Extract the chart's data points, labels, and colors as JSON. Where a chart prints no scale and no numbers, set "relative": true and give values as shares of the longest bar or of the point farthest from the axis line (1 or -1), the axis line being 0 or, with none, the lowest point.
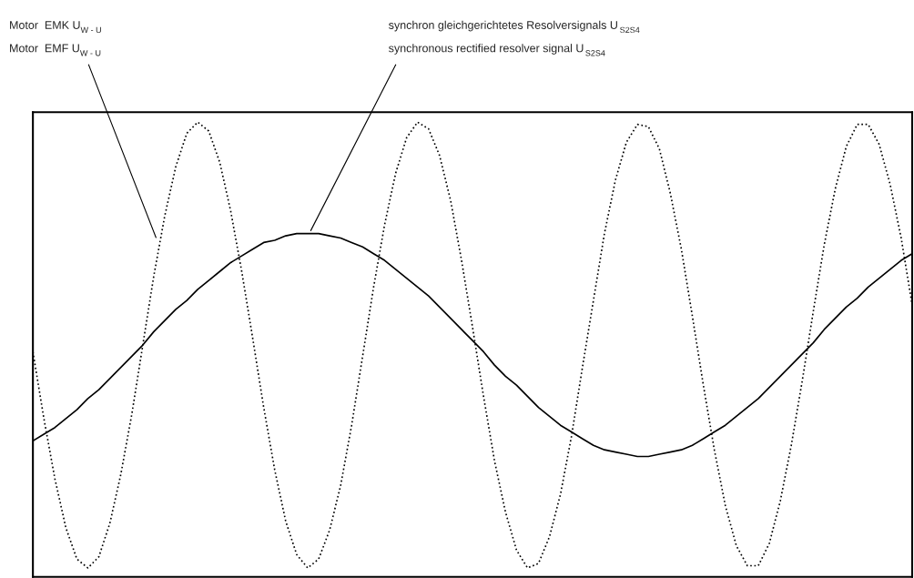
{
  "chart_data": {
    "type": "line",
    "relative": true,
    "categories": [
      null,
      null,
      null,
      null,
      null,
      null,
      null,
      null,
      null,
      null,
      null,
      null,
      null,
      null,
      null,
      null,
      null,
      null,
      null,
      null,
      null,
      null,
      null,
      null,
      null,
      null,
      null,
      null,
      null,
      null,
      null,
      null,
      null,
      null,
      null,
      null,
      null,
      null,
      null,
      null,
      null,
      null,
      null,
      null,
      null,
      null,
      null,
      null,
      null,
      null,
      null,
      null,
      null,
      null,
      null,
      null,
      null,
      null,
      null,
      null,
      null,
      null,
      null,
      null,
      null,
      null,
      null,
      null,
      null,
      null,
      null,
      null,
      null,
      null,
      null,
      null,
      null,
      null,
      null,
      null,
      null
    ],
    "series": [
      {
        "color": "#000000",
        "line_style": "dotted",
        "values": [
          0.485,
          0.335,
          0.2,
          0.09,
          0.02,
          0.0,
          0.025,
          0.1,
          0.21,
          0.345,
          0.5,
          0.655,
          0.79,
          0.9,
          0.975,
          1.0,
          0.98,
          0.91,
          0.8,
          0.665,
          0.515,
          0.36,
          0.22,
          0.105,
          0.03,
          0.0,
          0.02,
          0.085,
          0.185,
          0.32,
          0.475,
          0.63,
          0.77,
          0.885,
          0.965,
          1.0,
          0.985,
          0.925,
          0.825,
          0.69,
          0.54,
          0.385,
          0.24,
          0.125,
          0.04,
          0.0,
          0.01,
          0.07,
          0.165,
          0.295,
          0.45,
          0.6,
          0.75,
          0.87,
          0.955,
          0.995,
          0.99,
          0.94,
          0.84,
          0.715,
          0.565,
          0.41,
          0.265,
          0.14,
          0.05,
          0.005,
          0.005,
          0.055,
          0.15,
          0.275,
          0.42,
          0.575,
          0.725,
          0.85,
          0.945,
          0.995,
          0.995,
          0.95,
          0.86,
          0.74,
          0.59
        ]
      },
      {
        "color": "#000000",
        "line_style": "solid",
        "values": [
          0.285,
          0.3,
          0.315,
          0.335,
          0.355,
          0.38,
          0.4,
          0.425,
          0.45,
          0.475,
          0.5,
          0.53,
          0.555,
          0.58,
          0.6,
          0.625,
          0.645,
          0.665,
          0.685,
          0.7,
          0.715,
          0.73,
          0.735,
          0.745,
          0.75,
          0.75,
          0.75,
          0.745,
          0.74,
          0.73,
          0.72,
          0.705,
          0.69,
          0.67,
          0.65,
          0.63,
          0.61,
          0.585,
          0.56,
          0.535,
          0.51,
          0.485,
          0.455,
          0.43,
          0.41,
          0.385,
          0.36,
          0.34,
          0.32,
          0.305,
          0.29,
          0.275,
          0.265,
          0.26,
          0.255,
          0.25,
          0.25,
          0.255,
          0.26,
          0.265,
          0.275,
          0.29,
          0.305,
          0.32,
          0.34,
          0.36,
          0.38,
          0.405,
          0.43,
          0.455,
          0.48,
          0.505,
          0.535,
          0.56,
          0.585,
          0.605,
          0.63,
          0.65,
          0.67,
          0.69,
          0.705
        ]
      }
    ],
    "annotations": [
      "Motor  EMK U$_{W - U}$",
      "Motor  EMF U$_{W - U}$",
      "synchron gleichgerichtetes Resolversignals U$_{S2S4}$",
      "synchronous rectified resolver signal U$_{S2S4}$"
    ]
  }
}
